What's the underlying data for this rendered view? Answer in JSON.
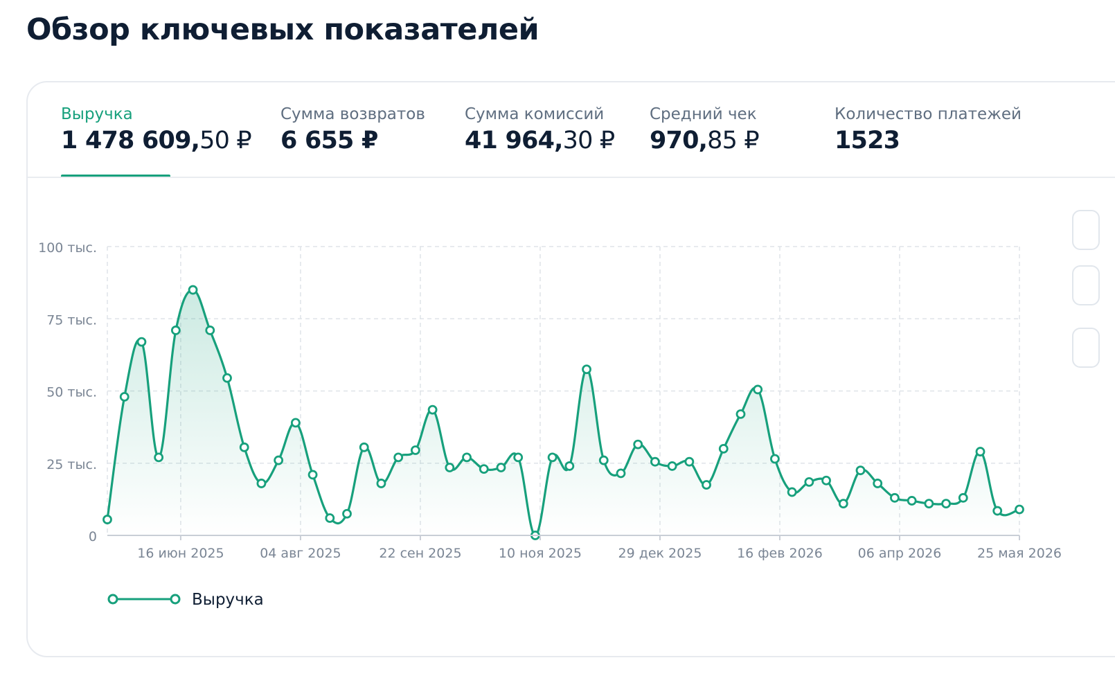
{
  "page": {
    "title": "Обзор ключевых показателей"
  },
  "metrics": [
    {
      "label": "Выручка",
      "value_int": "1 478 609,",
      "value_frac": "50 ₽",
      "active": true
    },
    {
      "label": "Сумма возвратов",
      "value_int": "6 655 ₽",
      "value_frac": ""
    },
    {
      "label": "Сумма комиссий",
      "value_int": "41 964,",
      "value_frac": "30 ₽"
    },
    {
      "label": "Средний чек",
      "value_int": "970,",
      "value_frac": "85 ₽"
    },
    {
      "label": "Количество платежей",
      "value_int": "1523",
      "value_frac": ""
    }
  ],
  "colors": {
    "accent": "#17a07c",
    "grid": "#dfe3e8",
    "axis_text": "#7a8594"
  },
  "chart_data": {
    "type": "line",
    "ylim": [
      0,
      100
    ],
    "yticks": [
      0,
      25,
      50,
      75,
      100
    ],
    "ytick_labels": [
      "0",
      "25 тыс.",
      "50 тыс.",
      "75 тыс.",
      "100 тыс."
    ],
    "x_start": "2025-05-17",
    "x_end": "2026-05-25",
    "x_tick_dates": [
      "2025-06-16",
      "2025-08-04",
      "2025-09-22",
      "2025-11-10",
      "2025-12-29",
      "2026-02-16",
      "2026-04-06",
      "2026-05-25"
    ],
    "xtick_labels": [
      "16 июн 2025",
      "04 авг 2025",
      "22 сен 2025",
      "10 ноя 2025",
      "29 дек 2025",
      "16 фев 2026",
      "06 апр 2026",
      "25 мая 2026"
    ],
    "grid": true,
    "legend_position": "bottom-left",
    "series": [
      {
        "name": "Выручка",
        "color": "#17a07c",
        "x": [
          "2025-05-17",
          "2025-05-24",
          "2025-05-31",
          "2025-06-07",
          "2025-06-14",
          "2025-06-21",
          "2025-06-28",
          "2025-07-05",
          "2025-07-12",
          "2025-07-19",
          "2025-07-26",
          "2025-08-02",
          "2025-08-09",
          "2025-08-16",
          "2025-08-23",
          "2025-08-30",
          "2025-09-06",
          "2025-09-13",
          "2025-09-20",
          "2025-09-27",
          "2025-10-04",
          "2025-10-11",
          "2025-10-18",
          "2025-10-25",
          "2025-11-01",
          "2025-11-08",
          "2025-11-15",
          "2025-11-22",
          "2025-11-29",
          "2025-12-06",
          "2025-12-13",
          "2025-12-20",
          "2025-12-27",
          "2026-01-03",
          "2026-01-10",
          "2026-01-17",
          "2026-01-24",
          "2026-01-31",
          "2026-02-07",
          "2026-02-14",
          "2026-02-21",
          "2026-02-28",
          "2026-03-07",
          "2026-03-14",
          "2026-03-21",
          "2026-03-28",
          "2026-04-04",
          "2026-04-11",
          "2026-04-18",
          "2026-04-25",
          "2026-05-02",
          "2026-05-09",
          "2026-05-16",
          "2026-05-25"
        ],
        "y": [
          5.5,
          48,
          67,
          27,
          71,
          85,
          71,
          54.5,
          30.5,
          18,
          26,
          39,
          21,
          6,
          7.5,
          30.5,
          18,
          27,
          29.5,
          43.5,
          23.5,
          27,
          23,
          23.5,
          27,
          0,
          27,
          24,
          57.5,
          26,
          21.5,
          31.5,
          25.5,
          24,
          25.5,
          17.5,
          30,
          42,
          50.5,
          26.5,
          15,
          18.5,
          19,
          11,
          22.5,
          18,
          13,
          12,
          11,
          11,
          13,
          29,
          8.5,
          9
        ]
      }
    ]
  },
  "legend": {
    "label": "Выручка"
  }
}
